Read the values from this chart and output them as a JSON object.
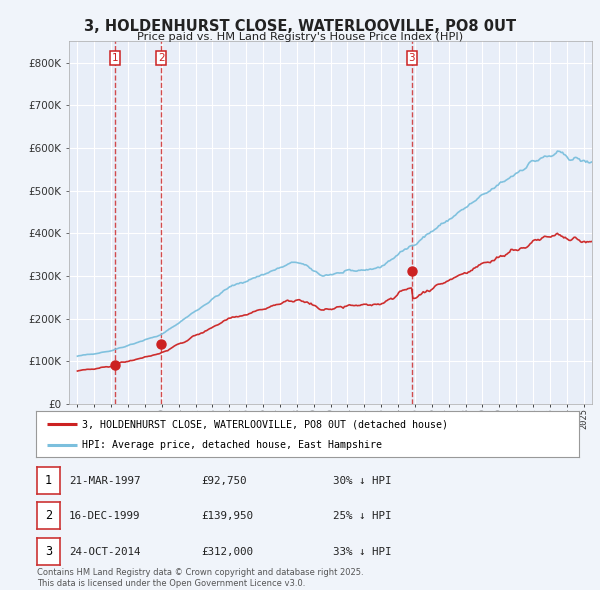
{
  "title": "3, HOLDENHURST CLOSE, WATERLOOVILLE, PO8 0UT",
  "subtitle": "Price paid vs. HM Land Registry's House Price Index (HPI)",
  "hpi_label": "HPI: Average price, detached house, East Hampshire",
  "property_label": "3, HOLDENHURST CLOSE, WATERLOOVILLE, PO8 0UT (detached house)",
  "sale_dates": [
    "21-MAR-1997",
    "16-DEC-1999",
    "24-OCT-2014"
  ],
  "sale_prices": [
    92750,
    139950,
    312000
  ],
  "sale_pct": [
    "30% ↓ HPI",
    "25% ↓ HPI",
    "33% ↓ HPI"
  ],
  "sale_years": [
    1997.22,
    1999.96,
    2014.81
  ],
  "footnote1": "Contains HM Land Registry data © Crown copyright and database right 2025.",
  "footnote2": "This data is licensed under the Open Government Licence v3.0.",
  "bg_color": "#f0f4fa",
  "plot_bg_color": "#e8eef8",
  "grid_color": "#ffffff",
  "line_color_hpi": "#7bbfdd",
  "line_color_property": "#cc2222",
  "vline_color": "#cc2222",
  "marker_color": "#cc2222",
  "legend_border_color": "#888888",
  "table_border_color": "#cc3333",
  "title_color": "#222222",
  "ylim": [
    0,
    850000
  ],
  "yticks": [
    0,
    100000,
    200000,
    300000,
    400000,
    500000,
    600000,
    700000,
    800000
  ],
  "xlim_start": 1994.5,
  "xlim_end": 2025.5
}
